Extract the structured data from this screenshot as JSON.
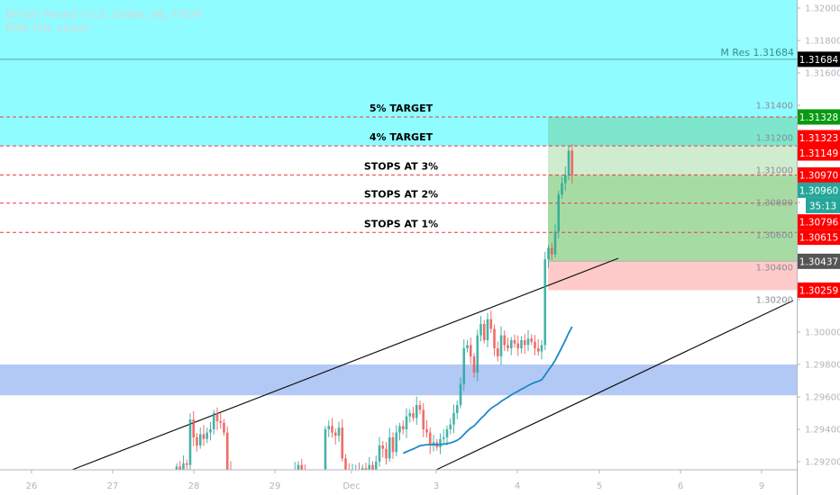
{
  "header": {
    "symbol_title": "British Pound / U.S. Dollar, 60, FXCM",
    "indicator": "EMA (50, close)"
  },
  "colors": {
    "up": "#26a69a",
    "down": "#ef5350",
    "ema": "#1e88c7",
    "resistance_zone": "#8ffcff",
    "support_zone": "#b3c9f5",
    "target_zone": "#7de6cc",
    "profit_zone": "#a6dca4",
    "profit_light": "#d0ecce",
    "loss_zone": "#ffcaca",
    "level_line": "#f23645"
  },
  "levels": [
    {
      "label": "5% TARGET",
      "price": 1.31328
    },
    {
      "label": "4% TARGET",
      "price": 1.31149
    },
    {
      "label": "STOPS AT 3%",
      "price": 1.3097
    },
    {
      "label": "STOPS AT 2%",
      "price": 1.30796
    },
    {
      "label": "STOPS AT 1%",
      "price": 1.30615
    }
  ],
  "resistance": {
    "label": "M Res 1.31684",
    "price": 1.31684
  },
  "support_zone": {
    "top": 1.298,
    "bottom": 1.2961
  },
  "position": {
    "entry": 1.30437,
    "target": 1.31328,
    "stop": 1.30259
  },
  "price_axis": {
    "ticks": [
      "1.32000",
      "1.31800",
      "1.31600",
      "1.31400",
      "1.31200",
      "1.31000",
      "1.30800",
      "1.30600",
      "1.30400",
      "1.30200",
      "1.30000",
      "1.29800",
      "1.29600",
      "1.29400",
      "1.29200"
    ],
    "badges": [
      {
        "text": "1.31684",
        "price": 1.31684,
        "color": "#000000"
      },
      {
        "text": "1.31328",
        "price": 1.31328,
        "color": "#089a10"
      },
      {
        "text": "1.31323",
        "price": 1.312,
        "color": "#ff0000"
      },
      {
        "text": "1.31149",
        "price": 1.31149,
        "color": "#ff0000"
      },
      {
        "text": "1.30970",
        "price": 1.3097,
        "color": "#ff0000"
      },
      {
        "text": "1.30960",
        "price": 1.3088,
        "color": "#26a69a"
      },
      {
        "text": "35:13",
        "price": 1.30796,
        "color": "#26a69a",
        "countdown": true
      },
      {
        "text": "1.30796",
        "price": 1.3068,
        "color": "#ff0000"
      },
      {
        "text": "1.30615",
        "price": 1.30615,
        "color": "#ff0000"
      },
      {
        "text": "1.30437",
        "price": 1.30437,
        "color": "#555555"
      },
      {
        "text": "1.30259",
        "price": 1.30259,
        "color": "#ff0000"
      }
    ]
  },
  "time_axis": [
    "26",
    "27",
    "28",
    "29",
    "Dec",
    "3",
    "4",
    "5",
    "6",
    "9"
  ],
  "ohlc_closes": [
    1.2917,
    1.2915,
    1.2919,
    1.2918,
    1.2946,
    1.2935,
    1.293,
    1.2937,
    1.2934,
    1.2938,
    1.294,
    1.295,
    1.2945,
    1.2944,
    1.2938,
    1.2915,
    1.2908,
    1.2905,
    1.2902,
    1.2906,
    1.2903,
    1.2905,
    1.29,
    1.2904,
    1.2907,
    1.2903,
    1.2905,
    1.2901,
    1.2904,
    1.2906,
    1.2902,
    1.2905,
    1.2903,
    1.2906,
    1.2908,
    1.2915,
    1.2918,
    1.2913,
    1.2905,
    1.29,
    1.2902,
    1.2899,
    1.2901,
    1.2903,
    1.294,
    1.2942,
    1.2938,
    1.2936,
    1.2941,
    1.2922,
    1.2915,
    1.2912,
    1.2913,
    1.2915,
    1.2911,
    1.2916,
    1.2913,
    1.2918,
    1.2914,
    1.292,
    1.293,
    1.2928,
    1.2922,
    1.2935,
    1.2926,
    1.2938,
    1.2942,
    1.294,
    1.2948,
    1.295,
    1.2947,
    1.2955,
    1.2952,
    1.294,
    1.2938,
    1.293,
    1.2932,
    1.2929,
    1.2934,
    1.2935,
    1.294,
    1.2943,
    1.295,
    1.2955,
    1.2968,
    1.299,
    1.2992,
    1.2985,
    1.2975,
    1.2998,
    1.3005,
    1.2995,
    1.3008,
    1.3002,
    1.299,
    1.2985,
    1.2998,
    1.2992,
    1.299,
    1.2995,
    1.2993,
    1.299,
    1.2995,
    1.2992,
    1.2996,
    1.2994,
    1.299,
    1.2988,
    1.2992,
    1.3045,
    1.3052,
    1.3048,
    1.3062,
    1.3085,
    1.3092,
    1.3097,
    1.3112,
    1.3097
  ]
}
